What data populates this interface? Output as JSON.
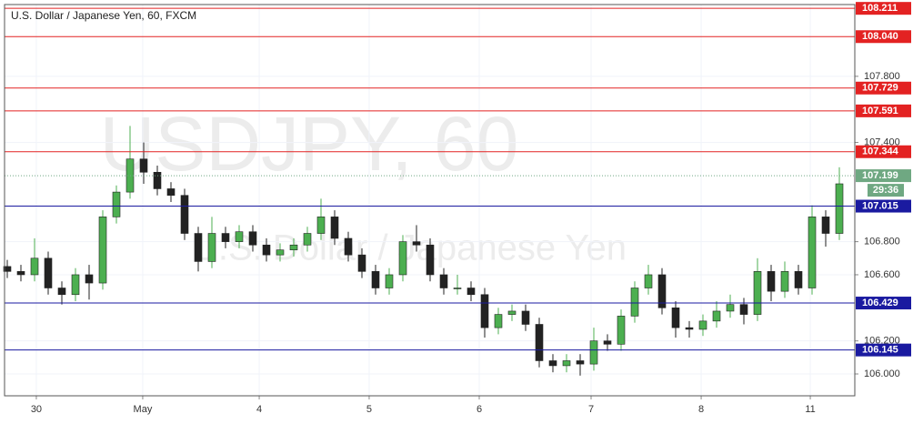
{
  "chart_data": {
    "type": "candlestick",
    "title": "U.S. Dollar / Japanese Yen, 60, FXCM",
    "watermark": "USDJPY, 60",
    "watermark_subtitle": "U.S. Dollar / Japanese Yen",
    "open": [
      106.65,
      106.62,
      106.6,
      106.7,
      106.52,
      106.48,
      106.6,
      106.55,
      106.95,
      107.1,
      107.3,
      107.22,
      107.12,
      107.08,
      106.85,
      106.68,
      106.85,
      106.8,
      106.86,
      106.78,
      106.72,
      106.75,
      106.78,
      106.85,
      106.95,
      106.82,
      106.72,
      106.62,
      106.52,
      106.6,
      106.8,
      106.78,
      106.6,
      106.52,
      106.52,
      106.48,
      106.28,
      106.36,
      106.38,
      106.3,
      106.08,
      106.05,
      106.08,
      106.06,
      106.2,
      106.18,
      106.35,
      106.52,
      106.6,
      106.4,
      106.28,
      106.27,
      106.32,
      106.38,
      106.42,
      106.36,
      106.62,
      106.5,
      106.62,
      106.52,
      106.95,
      106.85
    ],
    "high": [
      106.69,
      106.66,
      106.82,
      106.74,
      106.56,
      106.64,
      106.66,
      106.99,
      107.14,
      107.5,
      107.4,
      107.26,
      107.16,
      107.12,
      106.89,
      106.95,
      106.89,
      106.9,
      106.9,
      106.82,
      106.79,
      106.82,
      106.89,
      107.06,
      106.99,
      106.86,
      106.76,
      106.66,
      106.64,
      106.84,
      106.9,
      106.82,
      106.64,
      106.6,
      106.56,
      106.52,
      106.4,
      106.42,
      106.42,
      106.34,
      106.12,
      106.12,
      106.12,
      106.28,
      106.24,
      106.39,
      106.56,
      106.66,
      106.64,
      106.44,
      106.32,
      106.36,
      106.44,
      106.48,
      106.46,
      106.7,
      106.66,
      106.68,
      106.66,
      107.02,
      106.99,
      107.25
    ],
    "low": [
      106.58,
      106.56,
      106.56,
      106.48,
      106.42,
      106.44,
      106.45,
      106.51,
      106.91,
      107.06,
      107.15,
      107.08,
      107.04,
      106.81,
      106.62,
      106.64,
      106.76,
      106.76,
      106.74,
      106.68,
      106.68,
      106.71,
      106.74,
      106.81,
      106.78,
      106.68,
      106.58,
      106.48,
      106.48,
      106.56,
      106.74,
      106.56,
      106.48,
      106.48,
      106.44,
      106.22,
      106.24,
      106.32,
      106.26,
      106.04,
      106.01,
      106.01,
      105.99,
      106.02,
      106.14,
      106.14,
      106.31,
      106.48,
      106.36,
      106.22,
      106.22,
      106.23,
      106.28,
      106.34,
      106.3,
      106.32,
      106.44,
      106.46,
      106.48,
      106.48,
      106.77,
      106.81
    ],
    "close": [
      106.62,
      106.6,
      106.7,
      106.52,
      106.48,
      106.6,
      106.55,
      106.95,
      107.1,
      107.3,
      107.22,
      107.12,
      107.08,
      106.85,
      106.68,
      106.85,
      106.8,
      106.86,
      106.78,
      106.72,
      106.75,
      106.78,
      106.85,
      106.95,
      106.82,
      106.72,
      106.62,
      106.52,
      106.6,
      106.8,
      106.78,
      106.6,
      106.52,
      106.52,
      106.48,
      106.28,
      106.36,
      106.38,
      106.3,
      106.08,
      106.05,
      106.08,
      106.06,
      106.2,
      106.18,
      106.35,
      106.52,
      106.6,
      106.4,
      106.28,
      106.27,
      106.32,
      106.38,
      106.42,
      106.36,
      106.62,
      106.5,
      106.62,
      106.52,
      106.95,
      106.85,
      107.15
    ],
    "up_color": "#4caf50",
    "down_color": "#222222",
    "xlim": [
      -0.2,
      62.133
    ],
    "xticks": [
      {
        "value": 2.13,
        "label": "30"
      },
      {
        "value": 9.93,
        "label": "May"
      },
      {
        "value": 18.47,
        "label": "4"
      },
      {
        "value": 26.53,
        "label": "5"
      },
      {
        "value": 34.6,
        "label": "6"
      },
      {
        "value": 42.8,
        "label": "7"
      },
      {
        "value": 50.87,
        "label": "8"
      },
      {
        "value": 58.87,
        "label": "11"
      }
    ],
    "ylim": [
      105.868,
      108.234
    ],
    "yticks": [
      {
        "value": 106,
        "label": "106.000"
      },
      {
        "value": 106.2,
        "label": "106.200"
      },
      {
        "value": 106.6,
        "label": "106.600"
      },
      {
        "value": 106.8,
        "label": "106.800"
      },
      {
        "value": 107.4,
        "label": "107.400"
      },
      {
        "value": 107.8,
        "label": "107.800"
      }
    ],
    "grid": true,
    "levels": {
      "values": [
        108.211,
        108.04,
        107.729,
        107.591,
        107.344,
        107.015,
        106.429,
        106.145
      ],
      "value_labels": [
        "108.211",
        "108.040",
        "107.729",
        "107.591",
        "107.344",
        "107.015",
        "106.429",
        "106.145"
      ],
      "colors": [
        "#e32222",
        "#e32222",
        "#e32222",
        "#e32222",
        "#e32222",
        "#1a1aa0",
        "#1a1aa0",
        "#1a1aa0"
      ]
    },
    "last_price": {
      "value": 107.199,
      "label": "107.199",
      "countdown": "29:36",
      "color": "#6fa882"
    }
  }
}
